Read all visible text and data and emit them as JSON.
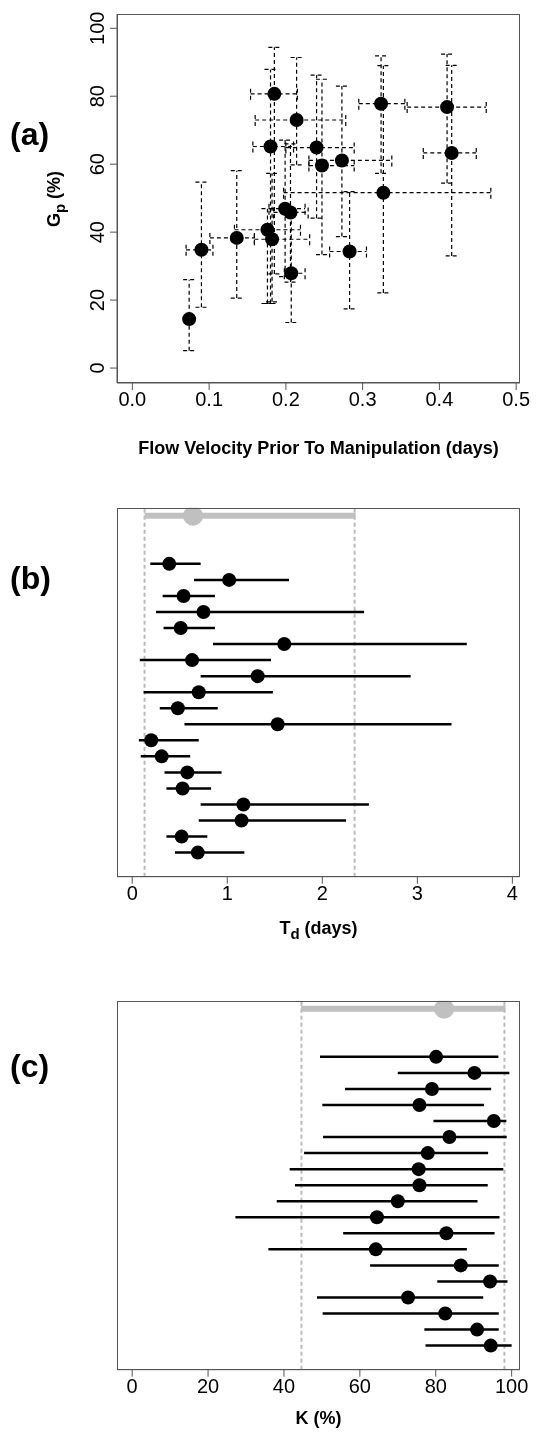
{
  "chart_data": [
    {
      "type": "scatter",
      "title": "(a)",
      "xlabel": "Flow Velocity Prior To Manipulation (days)",
      "ylabel": "G$_{p}$ (%)",
      "marker": "circle",
      "line_style": "dashed",
      "x": [
        0.185,
        0.074,
        0.09,
        0.136,
        0.176,
        0.182,
        0.199,
        0.206,
        0.207,
        0.18,
        0.214,
        0.24,
        0.247,
        0.273,
        0.283,
        0.327,
        0.324,
        0.41,
        0.416
      ],
      "values": [
        80.7,
        14.4,
        34.8,
        38.3,
        40.7,
        37.9,
        46.9,
        45.8,
        27.9,
        65.2,
        73.0,
        64.9,
        59.6,
        61.1,
        34.3,
        51.6,
        77.8,
        76.8,
        63.3
      ],
      "xerrors": [
        [
          0.154,
          0.215
        ],
        [
          0.07,
          0.078
        ],
        [
          0.07,
          0.105
        ],
        [
          0.101,
          0.159
        ],
        [
          0.133,
          0.219
        ],
        [
          0.159,
          0.231
        ],
        [
          0.178,
          0.225
        ],
        [
          0.184,
          0.229
        ],
        [
          0.198,
          0.225
        ],
        [
          0.157,
          0.21
        ],
        [
          0.16,
          0.278
        ],
        [
          0.2,
          0.289
        ],
        [
          0.23,
          0.289
        ],
        [
          0.23,
          0.338
        ],
        [
          0.257,
          0.305
        ],
        [
          0.197,
          0.467
        ],
        [
          0.295,
          0.355
        ],
        [
          0.358,
          0.461
        ],
        [
          0.379,
          0.448
        ]
      ],
      "errors": [
        [
          27.7,
          94.4
        ],
        [
          5.1,
          26
        ],
        [
          17.9,
          54.7
        ],
        [
          20.6,
          58.1
        ],
        [
          19,
          46.9
        ],
        [
          19.5,
          57.3
        ],
        [
          26.9,
          67.1
        ],
        [
          25.3,
          66
        ],
        [
          13.4,
          45
        ],
        [
          19,
          87.9
        ],
        [
          59.8,
          91.4
        ],
        [
          44.1,
          86.2
        ],
        [
          33.4,
          85
        ],
        [
          38.7,
          83
        ],
        [
          17.4,
          51.9
        ],
        [
          22.1,
          89
        ],
        [
          57.3,
          91.9
        ],
        [
          54.4,
          92.4
        ],
        [
          33,
          89.1
        ]
      ],
      "color": "#000000",
      "xlim": [
        -0.02,
        0.505
      ],
      "xticks": [
        {
          "value": 0,
          "label": "0.0"
        },
        0.1,
        0.2,
        0.3,
        0.4,
        0.5
      ],
      "ylim": [
        -4.4,
        104.2
      ],
      "yticks": [
        0,
        20,
        40,
        60,
        80,
        100
      ]
    },
    {
      "type": "scatter",
      "title": "(b)",
      "xlabel": "T$_{d}$ (days)",
      "orientation": "horizontal",
      "marker": "circle",
      "tick_labels": "x",
      "categories": [
        null,
        null,
        null,
        null,
        null,
        null,
        null,
        null,
        null,
        null,
        null,
        null,
        null,
        null,
        null,
        null,
        null,
        null,
        null,
        null,
        null,
        null,
        null
      ],
      "series": [
        {
          "color": "#c0c0c0",
          "values": [
            0.64,
            null,
            null,
            null,
            null,
            null,
            null,
            null,
            null,
            null,
            null,
            null,
            null,
            null,
            null,
            null,
            null,
            null,
            null,
            null,
            null,
            null,
            null
          ],
          "errors": [
            [
              0.13,
              2.35
            ],
            null,
            null,
            null,
            null,
            null,
            null,
            null,
            null,
            null,
            null,
            null,
            null,
            null,
            null,
            null,
            null,
            null,
            null,
            null,
            null,
            null,
            null
          ]
        },
        {
          "color": "#000000",
          "values": [
            null,
            null,
            null,
            0.39,
            1.02,
            0.54,
            0.75,
            0.51,
            1.6,
            0.63,
            1.32,
            0.7,
            0.48,
            1.53,
            0.2,
            0.31,
            0.58,
            0.53,
            1.17,
            1.15,
            0.52,
            0.69,
            null
          ],
          "errors": [
            null,
            null,
            null,
            [
              0.19,
              0.72
            ],
            [
              0.65,
              1.65
            ],
            [
              0.32,
              0.87
            ],
            [
              0.25,
              2.44
            ],
            [
              0.33,
              0.87
            ],
            [
              0.85,
              3.52
            ],
            [
              0.08,
              1.46
            ],
            [
              0.72,
              2.93
            ],
            [
              0.12,
              1.48
            ],
            [
              0.29,
              0.9
            ],
            [
              0.55,
              3.36
            ],
            [
              0.07,
              0.7
            ],
            [
              0.09,
              0.61
            ],
            [
              0.34,
              0.94
            ],
            [
              0.36,
              0.83
            ],
            [
              0.72,
              2.49
            ],
            [
              0.7,
              2.25
            ],
            [
              0.36,
              0.79
            ],
            [
              0.45,
              1.18
            ],
            null
          ]
        }
      ],
      "ref_lines": [
        {
          "axis": "x",
          "value": 0.13,
          "color": "#bbbbbb",
          "line_style": "dashed"
        },
        {
          "axis": "x",
          "value": 2.34,
          "color": "#bbbbbb",
          "line_style": "dashed"
        }
      ],
      "xlim": [
        -0.16,
        4.08
      ],
      "xticks": [
        0,
        1,
        2,
        3,
        4
      ]
    },
    {
      "type": "scatter",
      "title": "(c)",
      "xlabel": "K (%)",
      "orientation": "horizontal",
      "marker": "circle",
      "tick_labels": "x",
      "categories": [
        null,
        null,
        null,
        null,
        null,
        null,
        null,
        null,
        null,
        null,
        null,
        null,
        null,
        null,
        null,
        null,
        null,
        null,
        null,
        null,
        null,
        null,
        null
      ],
      "series": [
        {
          "color": "#c0c0c0",
          "values": [
            82.2,
            null,
            null,
            null,
            null,
            null,
            null,
            null,
            null,
            null,
            null,
            null,
            null,
            null,
            null,
            null,
            null,
            null,
            null,
            null,
            null,
            null,
            null
          ],
          "errors": [
            [
              44.5,
              98.4
            ],
            null,
            null,
            null,
            null,
            null,
            null,
            null,
            null,
            null,
            null,
            null,
            null,
            null,
            null,
            null,
            null,
            null,
            null,
            null,
            null,
            null,
            null
          ]
        },
        {
          "color": "#000000",
          "values": [
            null,
            null,
            null,
            80.1,
            90.2,
            79.0,
            75.7,
            95.3,
            83.6,
            77.9,
            75.5,
            75.7,
            70.0,
            64.5,
            82.8,
            64.2,
            86.6,
            94.3,
            72.7,
            82.5,
            90.9,
            94.5,
            null
          ],
          "errors": [
            null,
            null,
            null,
            [
              49.5,
              96.5
            ],
            [
              70,
              99.4
            ],
            [
              56.1,
              94.6
            ],
            [
              50.1,
              92.7
            ],
            [
              79.4,
              98.6
            ],
            [
              50.3,
              98.7
            ],
            [
              45.3,
              93.8
            ],
            [
              41.5,
              97.8
            ],
            [
              42.9,
              93.7
            ],
            [
              38.1,
              91
            ],
            [
              27.2,
              96.8
            ],
            [
              55.6,
              95.5
            ],
            [
              35.9,
              88.2
            ],
            [
              62.7,
              96.6
            ],
            [
              80.4,
              98.9
            ],
            [
              48.7,
              92.5
            ],
            [
              50.2,
              96.6
            ],
            [
              77,
              96.6
            ],
            [
              77.3,
              100
            ],
            null
          ]
        }
      ],
      "ref_lines": [
        {
          "axis": "x",
          "value": 44.6,
          "color": "#bbbbbb",
          "line_style": "dashed"
        },
        {
          "axis": "x",
          "value": 98.1,
          "color": "#bbbbbb",
          "line_style": "dashed"
        }
      ],
      "xlim": [
        -4,
        102.2
      ],
      "xticks": [
        0,
        20,
        40,
        60,
        80,
        100
      ]
    }
  ]
}
